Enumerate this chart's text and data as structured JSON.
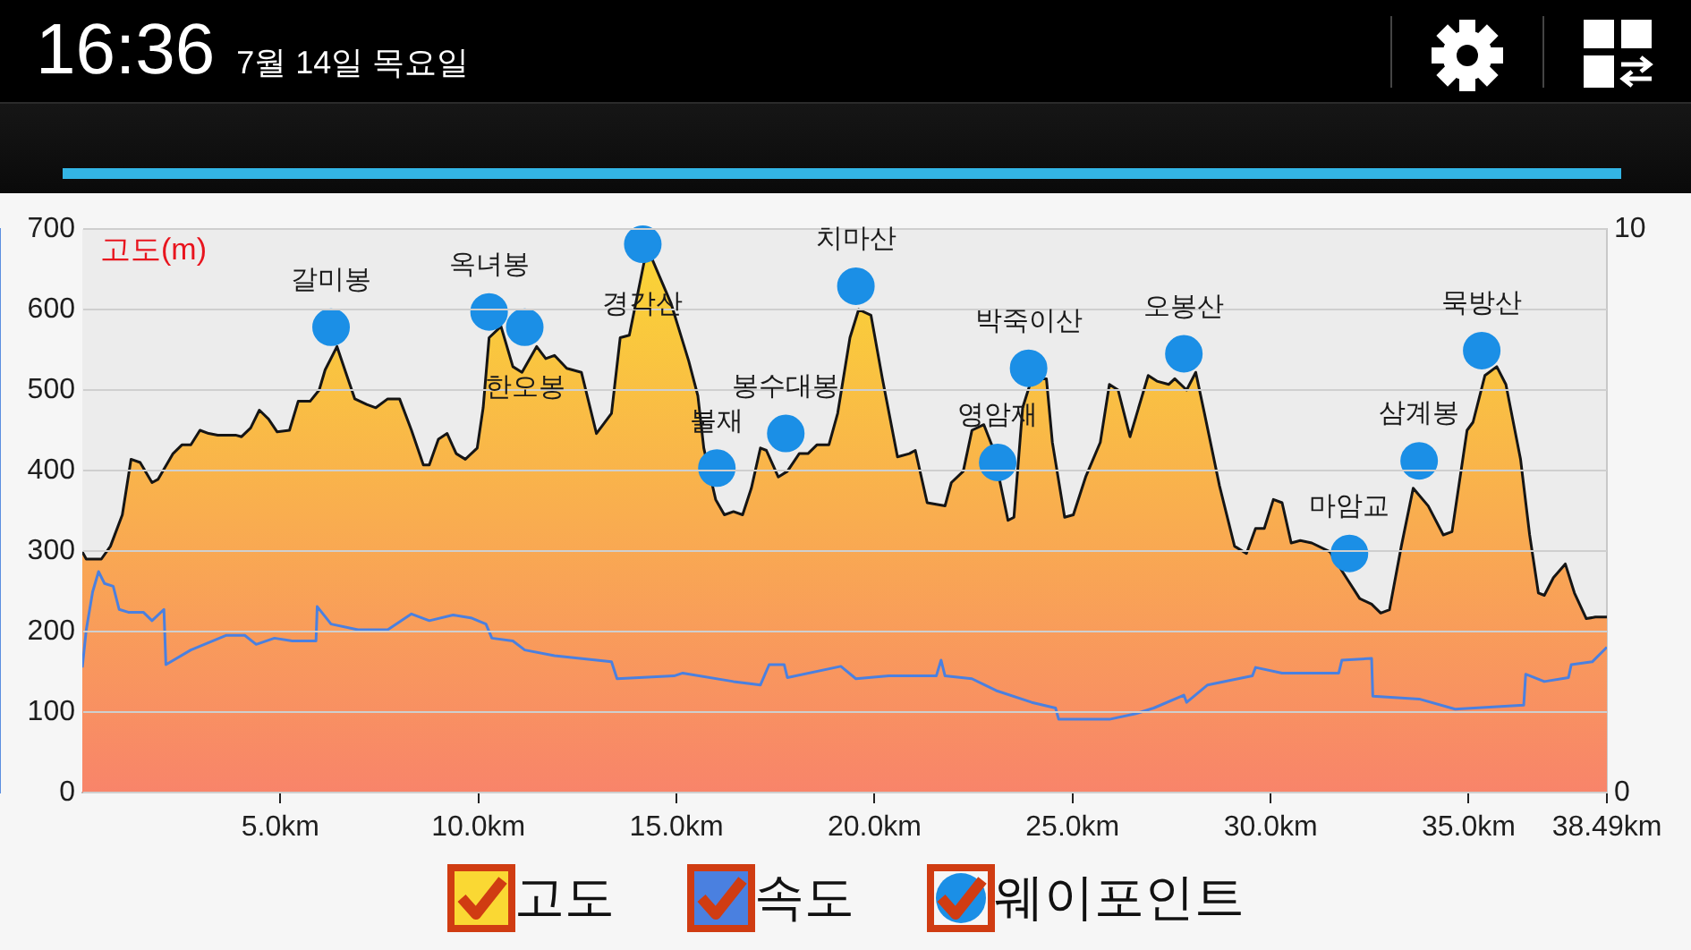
{
  "chart_data": {
    "type": "area",
    "ylabel": "고도(m)",
    "grid": "y",
    "legend": "bottom",
    "xlim": [
      0,
      38.49
    ],
    "xticks": [
      {
        "value": 5,
        "label": "5.0km"
      },
      {
        "value": 10,
        "label": "10.0km"
      },
      {
        "value": 15,
        "label": "15.0km"
      },
      {
        "value": 20,
        "label": "20.0km"
      },
      {
        "value": 25,
        "label": "25.0km"
      },
      {
        "value": 30,
        "label": "30.0km"
      },
      {
        "value": 35,
        "label": "35.0km"
      },
      {
        "value": 38.49,
        "label": "38.49km"
      }
    ],
    "ylim": [
      0,
      700
    ],
    "yticks": [
      0,
      100,
      200,
      300,
      400,
      500,
      600,
      700
    ],
    "y2lim": [
      0,
      10
    ],
    "y2ticks": [
      0,
      10
    ],
    "series": [
      {
        "name": "고도",
        "color": "#fad833",
        "x": [
          0,
          0.1,
          0.48,
          0.71,
          1.01,
          1.23,
          1.46,
          1.76,
          1.91,
          2.29,
          2.52,
          2.74,
          2.97,
          3.19,
          3.42,
          3.87,
          4.02,
          4.25,
          4.47,
          4.7,
          4.92,
          5.23,
          5.45,
          5.75,
          5.98,
          6.13,
          6.43,
          6.65,
          6.88,
          7.18,
          7.41,
          7.71,
          8.01,
          8.31,
          8.61,
          8.76,
          8.99,
          9.21,
          9.44,
          9.67,
          9.97,
          10.12,
          10.27,
          10.57,
          10.87,
          11.1,
          11.47,
          11.7,
          11.92,
          12.23,
          12.6,
          12.98,
          13.36,
          13.58,
          13.81,
          14.18,
          14.33,
          14.86,
          15.31,
          15.54,
          15.69,
          15.99,
          16.21,
          16.44,
          16.67,
          16.89,
          17.12,
          17.27,
          17.57,
          17.8,
          18.1,
          18.32,
          18.55,
          18.85,
          19.07,
          19.38,
          19.6,
          19.91,
          20.2,
          20.58,
          20.88,
          21.03,
          21.33,
          21.78,
          21.94,
          22.24,
          22.46,
          22.76,
          22.99,
          23.37,
          23.52,
          23.74,
          23.97,
          24.34,
          24.49,
          24.8,
          25.02,
          25.33,
          25.7,
          25.93,
          26.15,
          26.45,
          26.91,
          27.13,
          27.43,
          27.58,
          27.88,
          28.11,
          28.33,
          28.71,
          29.09,
          29.39,
          29.62,
          29.84,
          30.07,
          30.29,
          30.52,
          30.75,
          31.04,
          31.5,
          31.87,
          32.25,
          32.55,
          32.78,
          33.0,
          33.3,
          33.6,
          33.98,
          34.36,
          34.58,
          34.96,
          35.11,
          35.41,
          35.71,
          35.94,
          36.31,
          36.54,
          36.76,
          36.91,
          37.14,
          37.44,
          37.67,
          37.97,
          38.2,
          38.49
        ],
        "values": [
          299,
          290,
          290,
          306,
          345,
          414,
          410,
          385,
          389,
          421,
          432,
          432,
          450,
          446,
          444,
          444,
          442,
          453,
          475,
          464,
          448,
          450,
          486,
          486,
          500,
          525,
          554,
          522,
          489,
          482,
          478,
          489,
          489,
          450,
          407,
          407,
          439,
          446,
          421,
          414,
          428,
          478,
          565,
          579,
          529,
          522,
          554,
          539,
          543,
          527,
          522,
          446,
          471,
          565,
          568,
          658,
          669,
          608,
          536,
          493,
          428,
          364,
          345,
          349,
          345,
          378,
          428,
          425,
          392,
          399,
          421,
          421,
          432,
          432,
          471,
          565,
          600,
          593,
          514,
          417,
          421,
          425,
          360,
          356,
          385,
          399,
          450,
          457,
          428,
          338,
          342,
          478,
          514,
          514,
          435,
          342,
          345,
          392,
          435,
          507,
          500,
          442,
          518,
          511,
          507,
          514,
          500,
          522,
          471,
          381,
          306,
          297,
          328,
          328,
          364,
          360,
          310,
          313,
          310,
          299,
          270,
          241,
          234,
          223,
          227,
          306,
          378,
          356,
          320,
          324,
          450,
          460,
          518,
          529,
          507,
          414,
          320,
          248,
          245,
          267,
          284,
          248,
          216,
          218,
          218
        ]
      },
      {
        "name": "속도",
        "type": "line",
        "axis": "y2",
        "color": "#4a80e0",
        "x": [
          0,
          0.1,
          0.26,
          0.41,
          0.56,
          0.78,
          0.93,
          1.16,
          1.54,
          1.76,
          2.06,
          2.11,
          2.74,
          3.64,
          4.1,
          4.39,
          4.85,
          5.3,
          5.9,
          5.93,
          6.28,
          6.96,
          7.71,
          8.31,
          8.76,
          9.36,
          9.81,
          10.19,
          10.34,
          10.87,
          11.17,
          11.92,
          13.36,
          13.5,
          14.94,
          15.16,
          16.44,
          17.12,
          17.34,
          17.72,
          17.8,
          19.15,
          19.53,
          20.36,
          21.56,
          21.68,
          21.78,
          22.46,
          23.07,
          23.97,
          24.57,
          24.65,
          25.62,
          25.93,
          26.6,
          27.05,
          27.81,
          27.88,
          28.41,
          29.54,
          29.62,
          30.29,
          31.72,
          31.8,
          32.55,
          32.58,
          33.75,
          34.66,
          36.39,
          36.44,
          36.91,
          37.52,
          37.59,
          38.12,
          38.49
        ],
        "values": [
          2.22,
          2.89,
          3.56,
          3.92,
          3.71,
          3.66,
          3.25,
          3.2,
          3.2,
          3.05,
          3.25,
          2.27,
          2.53,
          2.79,
          2.79,
          2.63,
          2.74,
          2.69,
          2.69,
          3.3,
          2.99,
          2.89,
          2.89,
          3.17,
          3.05,
          3.15,
          3.1,
          2.99,
          2.74,
          2.69,
          2.53,
          2.43,
          2.32,
          2.02,
          2.07,
          2.12,
          1.97,
          1.91,
          2.27,
          2.27,
          2.04,
          2.24,
          2.02,
          2.07,
          2.07,
          2.35,
          2.07,
          2.02,
          1.81,
          1.6,
          1.5,
          1.3,
          1.3,
          1.3,
          1.4,
          1.5,
          1.73,
          1.6,
          1.91,
          2.07,
          2.22,
          2.12,
          2.12,
          2.35,
          2.38,
          1.71,
          1.66,
          1.48,
          1.55,
          2.1,
          1.97,
          2.04,
          2.27,
          2.32,
          2.58
        ]
      },
      {
        "name": "웨이포인트",
        "type": "scatter",
        "marker": "circle",
        "color": "#1b8fe6",
        "x": [
          6.28,
          10.27,
          11.17,
          14.15,
          16.02,
          17.76,
          19.53,
          23.11,
          23.89,
          27.81,
          31.99,
          33.75,
          35.33
        ],
        "values": [
          578,
          597,
          578,
          681,
          403,
          446,
          629,
          410,
          527,
          545,
          297,
          412,
          549
        ]
      }
    ],
    "annotations": [
      "16:36",
      "7월 14일 목요일",
      {
        "text": "갈미봉",
        "x": 6.28,
        "y": 578
      },
      {
        "text": "옥녀봉",
        "x": 10.27,
        "y": 597
      },
      {
        "text": "한오봉",
        "x": 11.17,
        "y": 578
      },
      {
        "text": "경각산",
        "x": 14.15,
        "y": 681
      },
      {
        "text": "불재",
        "x": 16.02,
        "y": 403
      },
      {
        "text": "봉수대봉",
        "x": 17.76,
        "y": 446
      },
      {
        "text": "치마산",
        "x": 19.53,
        "y": 629
      },
      {
        "text": "영암재",
        "x": 23.11,
        "y": 410
      },
      {
        "text": "박죽이산",
        "x": 23.89,
        "y": 527
      },
      {
        "text": "오봉산",
        "x": 27.81,
        "y": 545
      },
      {
        "text": "마암교",
        "x": 31.99,
        "y": 297
      },
      {
        "text": "삼계봉",
        "x": 33.75,
        "y": 412
      },
      {
        "text": "묵방산",
        "x": 35.33,
        "y": 549
      }
    ]
  }
}
